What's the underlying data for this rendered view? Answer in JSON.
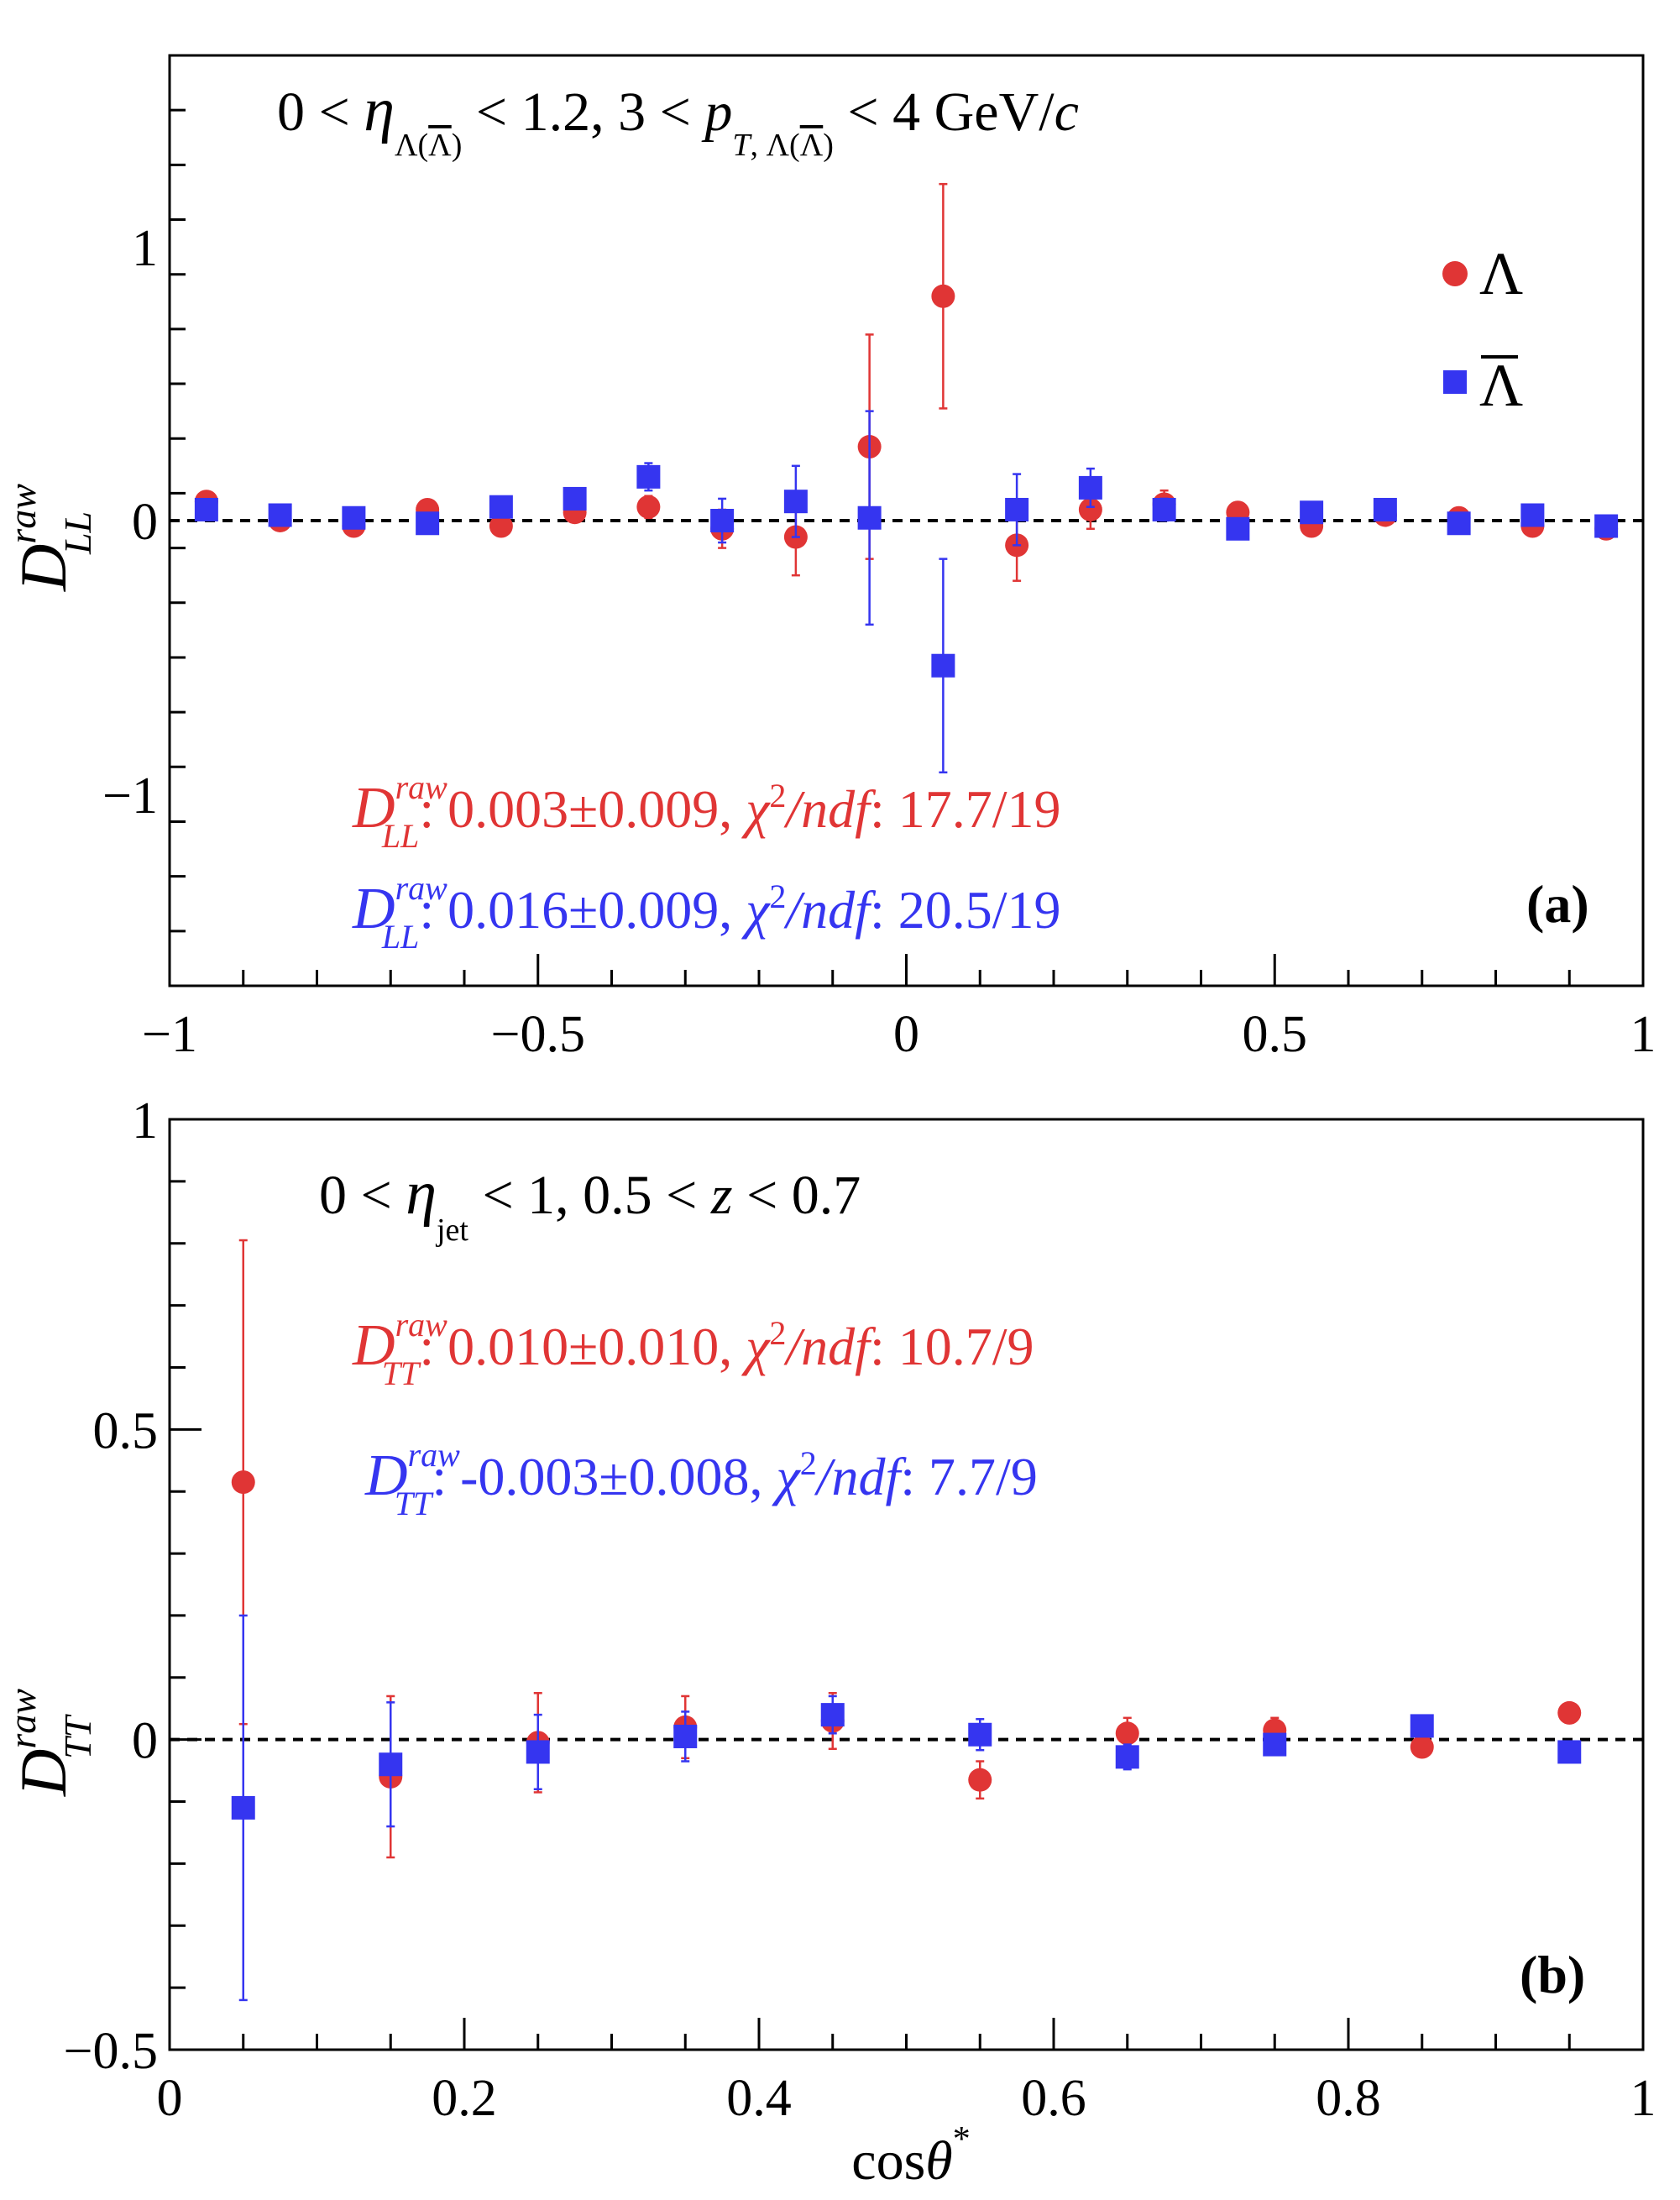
{
  "chart_data": [
    {
      "type": "scatter",
      "panel_label": "(a)",
      "condition": {
        "parts": [
          "0 < ",
          "η",
          "Λ(",
          "Λ",
          ")",
          " < 1.2,  3 < ",
          "p",
          "T",
          ", Λ(",
          "Λ",
          ")",
          " < 4 GeV/",
          "c"
        ]
      },
      "ylabel": {
        "main": "D",
        "sup": "raw",
        "sub": "LL"
      },
      "xlim": [
        -1,
        1
      ],
      "ylim": [
        -1.7,
        1.7
      ],
      "x_ticks": [
        "−1",
        "−0.5",
        "0",
        "0.5",
        "1"
      ],
      "y_ticks": [
        "−1",
        "0",
        "1"
      ],
      "legend": {
        "position": "top-right",
        "items": [
          "Λ",
          "Λ"
        ]
      },
      "fits": [
        {
          "D": "D",
          "sup": "raw",
          "sub": "LL",
          "value": ": 0.003±0.009, ",
          "chi": "χ",
          "chi_sup": "2",
          "ndf": "/ndf",
          "chi_val": ": 17.7/19",
          "color": "#e03535"
        },
        {
          "D": "D",
          "sup": "raw",
          "sub": "LL",
          "value": ": 0.016±0.009, ",
          "chi": "χ",
          "chi_sup": "2",
          "ndf": "/ndf",
          "chi_val": ": 20.5/19",
          "color": "#3535f0"
        }
      ],
      "series": [
        {
          "name": "Λ",
          "color": "#e03535",
          "marker": "circle",
          "points": [
            {
              "x": -0.95,
              "y": 0.07,
              "err": 0.01
            },
            {
              "x": -0.85,
              "y": 0.0,
              "err": 0.01
            },
            {
              "x": -0.75,
              "y": -0.02,
              "err": 0.01
            },
            {
              "x": -0.65,
              "y": 0.04,
              "err": 0.01
            },
            {
              "x": -0.55,
              "y": -0.02,
              "err": 0.01
            },
            {
              "x": -0.45,
              "y": 0.03,
              "err": 0.02
            },
            {
              "x": -0.35,
              "y": 0.05,
              "err": 0.04
            },
            {
              "x": -0.25,
              "y": -0.03,
              "err": 0.07
            },
            {
              "x": -0.15,
              "y": -0.06,
              "err": 0.14
            },
            {
              "x": -0.05,
              "y": 0.27,
              "err": 0.41
            },
            {
              "x": 0.05,
              "y": 0.82,
              "err": 0.41
            },
            {
              "x": 0.15,
              "y": -0.09,
              "err": 0.13
            },
            {
              "x": 0.25,
              "y": 0.04,
              "err": 0.07
            },
            {
              "x": 0.35,
              "y": 0.06,
              "err": 0.05
            },
            {
              "x": 0.45,
              "y": 0.03,
              "err": 0.02
            },
            {
              "x": 0.55,
              "y": -0.02,
              "err": 0.01
            },
            {
              "x": 0.65,
              "y": 0.02,
              "err": 0.01
            },
            {
              "x": 0.75,
              "y": 0.01,
              "err": 0.01
            },
            {
              "x": 0.85,
              "y": -0.02,
              "err": 0.01
            },
            {
              "x": 0.95,
              "y": -0.03,
              "err": 0.01
            }
          ]
        },
        {
          "name": "Λ",
          "color": "#3535f0",
          "marker": "square",
          "points": [
            {
              "x": -0.95,
              "y": 0.04,
              "err": 0.01
            },
            {
              "x": -0.85,
              "y": 0.02,
              "err": 0.01
            },
            {
              "x": -0.75,
              "y": 0.01,
              "err": 0.01
            },
            {
              "x": -0.65,
              "y": -0.01,
              "err": 0.01
            },
            {
              "x": -0.55,
              "y": 0.05,
              "err": 0.01
            },
            {
              "x": -0.45,
              "y": 0.08,
              "err": 0.02
            },
            {
              "x": -0.35,
              "y": 0.16,
              "err": 0.05
            },
            {
              "x": -0.25,
              "y": 0.0,
              "err": 0.08
            },
            {
              "x": -0.15,
              "y": 0.07,
              "err": 0.13
            },
            {
              "x": -0.05,
              "y": 0.01,
              "err": 0.39
            },
            {
              "x": 0.05,
              "y": -0.53,
              "err": 0.39
            },
            {
              "x": 0.15,
              "y": 0.04,
              "err": 0.13
            },
            {
              "x": 0.25,
              "y": 0.12,
              "err": 0.07
            },
            {
              "x": 0.35,
              "y": 0.04,
              "err": 0.04
            },
            {
              "x": 0.45,
              "y": -0.03,
              "err": 0.02
            },
            {
              "x": 0.55,
              "y": 0.03,
              "err": 0.01
            },
            {
              "x": 0.65,
              "y": 0.04,
              "err": 0.01
            },
            {
              "x": 0.75,
              "y": -0.01,
              "err": 0.01
            },
            {
              "x": 0.85,
              "y": 0.02,
              "err": 0.01
            },
            {
              "x": 0.95,
              "y": -0.02,
              "err": 0.01
            }
          ]
        }
      ]
    },
    {
      "type": "scatter",
      "panel_label": "(b)",
      "condition": {
        "parts": [
          "0 < ",
          "η",
          "jet",
          " < 1,  0.5 < ",
          "z",
          " < 0.7"
        ]
      },
      "ylabel": {
        "main": "D",
        "sup": "raw",
        "sub": "TT"
      },
      "xlabel": {
        "main": "cos",
        "theta": "θ",
        "sup": "*"
      },
      "xlim": [
        0,
        1
      ],
      "ylim": [
        -0.5,
        1.0
      ],
      "x_ticks": [
        "0",
        "0.2",
        "0.4",
        "0.6",
        "0.8",
        "1"
      ],
      "y_ticks": [
        "−0.5",
        "0",
        "0.5",
        "1"
      ],
      "fits": [
        {
          "D": "D",
          "sup": "raw",
          "sub": "TT",
          "value": ": 0.010±0.010, ",
          "chi": "χ",
          "chi_sup": "2",
          "ndf": "/ndf",
          "chi_val": ": 10.7/9",
          "color": "#e03535"
        },
        {
          "D": "D",
          "sup": "raw",
          "sub": "TT",
          "value": ": -0.003±0.008, ",
          "chi": "χ",
          "chi_sup": "2",
          "ndf": "/ndf",
          "chi_val": ": 7.7/9",
          "color": "#3535f0"
        }
      ],
      "series": [
        {
          "name": "Λ",
          "color": "#e03535",
          "marker": "circle",
          "points": [
            {
              "x": 0.05,
              "y": 0.415,
              "err": 0.39
            },
            {
              "x": 0.15,
              "y": -0.06,
              "err": 0.13
            },
            {
              "x": 0.25,
              "y": -0.005,
              "err": 0.08
            },
            {
              "x": 0.35,
              "y": 0.02,
              "err": 0.05
            },
            {
              "x": 0.45,
              "y": 0.03,
              "err": 0.045
            },
            {
              "x": 0.55,
              "y": -0.065,
              "err": 0.03
            },
            {
              "x": 0.65,
              "y": 0.01,
              "err": 0.025
            },
            {
              "x": 0.75,
              "y": 0.015,
              "err": 0.02
            },
            {
              "x": 0.85,
              "y": -0.012,
              "err": 0.01
            },
            {
              "x": 0.95,
              "y": 0.043,
              "err": 0.01
            }
          ]
        },
        {
          "name": "Λ",
          "color": "#3535f0",
          "marker": "square",
          "points": [
            {
              "x": 0.05,
              "y": -0.11,
              "err": 0.31
            },
            {
              "x": 0.15,
              "y": -0.04,
              "err": 0.1
            },
            {
              "x": 0.25,
              "y": -0.02,
              "err": 0.06
            },
            {
              "x": 0.35,
              "y": 0.005,
              "err": 0.04
            },
            {
              "x": 0.45,
              "y": 0.04,
              "err": 0.03
            },
            {
              "x": 0.55,
              "y": 0.008,
              "err": 0.025
            },
            {
              "x": 0.65,
              "y": -0.028,
              "err": 0.02
            },
            {
              "x": 0.75,
              "y": -0.008,
              "err": 0.01
            },
            {
              "x": 0.85,
              "y": 0.022,
              "err": 0.01
            },
            {
              "x": 0.95,
              "y": -0.02,
              "err": 0.01
            }
          ]
        }
      ]
    }
  ]
}
